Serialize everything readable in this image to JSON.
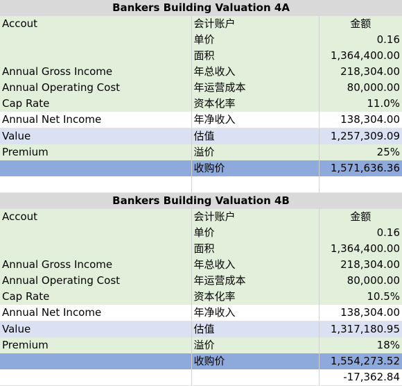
{
  "tables": [
    {
      "title": "Bankers Building Valuation 4A",
      "header": {
        "account": "Accout",
        "cn_account": "会计账户",
        "amount": "金额"
      },
      "rows": [
        {
          "account": "",
          "cn": "单价",
          "amount": "0.16"
        },
        {
          "account": "",
          "cn": "面积",
          "amount": "1,364,400.00"
        },
        {
          "account": "Annual Gross Income",
          "cn": "年总收入",
          "amount": "218,304.00"
        },
        {
          "account": "Annual Operating Cost",
          "cn": "年运营成本",
          "amount": "80,000.00"
        },
        {
          "account": "Cap Rate",
          "cn": "资本化率",
          "amount": "11.0%"
        },
        {
          "account": "Annual Net Income",
          "cn": "年净收入",
          "amount": "138,304.00"
        },
        {
          "account": "Value",
          "cn": "估值",
          "amount": "1,257,309.09"
        },
        {
          "account": "Premium",
          "cn": "溢价",
          "amount": "25%"
        },
        {
          "account": "",
          "cn": "收购价",
          "amount": "1,571,636.36"
        },
        {
          "account": "",
          "cn": "",
          "amount": ""
        }
      ]
    },
    {
      "title": "Bankers Building Valuation 4B",
      "header": {
        "account": "Accout",
        "cn_account": "会计账户",
        "amount": "金额"
      },
      "rows": [
        {
          "account": "",
          "cn": "单价",
          "amount": "0.16"
        },
        {
          "account": "",
          "cn": "面积",
          "amount": "1,364,400.00"
        },
        {
          "account": "Annual Gross Income",
          "cn": "年总收入",
          "amount": "218,304.00"
        },
        {
          "account": "Annual Operating Cost",
          "cn": "年运营成本",
          "amount": "80,000.00"
        },
        {
          "account": "Cap Rate",
          "cn": "资本化率",
          "amount": "10.5%"
        },
        {
          "account": "Annual Net Income",
          "cn": "年净收入",
          "amount": "138,304.00"
        },
        {
          "account": "Value",
          "cn": "估值",
          "amount": "1,317,180.95"
        },
        {
          "account": "Premium",
          "cn": "溢价",
          "amount": "18%"
        },
        {
          "account": "",
          "cn": "收购价",
          "amount": "1,554,273.52"
        },
        {
          "account": "",
          "cn": "",
          "amount": "-17,362.84"
        }
      ]
    }
  ]
}
